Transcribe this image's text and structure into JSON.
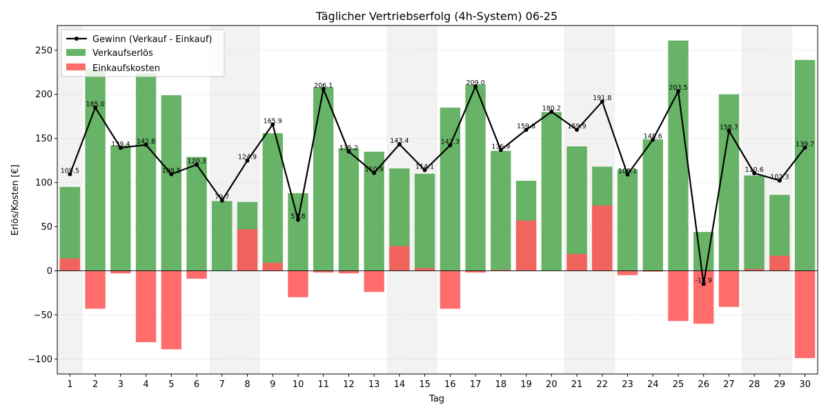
{
  "chart_data": {
    "type": "bar",
    "title": "Täglicher Vertriebserfolg (4h-System) 06-25",
    "xlabel": "Tag",
    "ylabel": "Erlös/Kosten [€]",
    "ylim": [
      -117,
      278
    ],
    "yticks": [
      -100,
      -50,
      0,
      50,
      100,
      150,
      200,
      250
    ],
    "grid": true,
    "legend_position": "top-left",
    "categories": [
      "1",
      "2",
      "3",
      "4",
      "5",
      "6",
      "7",
      "8",
      "9",
      "10",
      "11",
      "12",
      "13",
      "14",
      "15",
      "16",
      "17",
      "18",
      "19",
      "20",
      "21",
      "22",
      "23",
      "24",
      "25",
      "26",
      "27",
      "28",
      "29",
      "30"
    ],
    "shaded_days": [
      1,
      7,
      8,
      14,
      15,
      21,
      22,
      28,
      29
    ],
    "series": [
      {
        "name": "Verkaufserlös",
        "kind": "bar",
        "color": "#4ca64c",
        "values": [
          95,
          229,
          142,
          224,
          199,
          129,
          79,
          78,
          156,
          88,
          208,
          139,
          135,
          116,
          110,
          185,
          211,
          136,
          102,
          180,
          141,
          118,
          115,
          149,
          261,
          44,
          200,
          108,
          86,
          239
        ]
      },
      {
        "name": "Einkaufskosten",
        "kind": "bar",
        "color": "#ff5c5c",
        "values": [
          14,
          -43,
          -3,
          -81,
          -89,
          -9,
          0,
          47,
          9,
          -30,
          -2,
          -3,
          -24,
          28,
          3,
          -43,
          -2,
          1,
          57,
          0,
          19,
          74,
          -5,
          -1,
          -57,
          -60,
          -41,
          2,
          17,
          -99
        ]
      },
      {
        "name": "Gewinn (Verkauf - Einkauf)",
        "kind": "line",
        "color": "#000000",
        "values": [
          109.5,
          185.0,
          139.4,
          142.8,
          109.5,
          120.3,
          79.7,
          124.9,
          165.9,
          57.8,
          206.1,
          135.2,
          110.9,
          143.4,
          114.1,
          142.3,
          209.0,
          136.9,
          159.8,
          180.2,
          159.9,
          191.8,
          109.1,
          148.6,
          203.5,
          -14.9,
          158.7,
          110.6,
          102.3,
          139.7
        ],
        "labels": [
          "109.5",
          "185.0",
          "139.4",
          "142.8",
          "109.5",
          "120.3",
          "79.7",
          "124.9",
          "165.9",
          "57.8",
          "206.1",
          "135.2",
          "110.9",
          "143.4",
          "114.1",
          "142.3",
          "209.0",
          "136.9",
          "159.8",
          "180.2",
          "159.9",
          "191.8",
          "109.1",
          "148.6",
          "203.5",
          "-14.9",
          "158.7",
          "110.6",
          "102.3",
          "139.7"
        ]
      }
    ]
  }
}
